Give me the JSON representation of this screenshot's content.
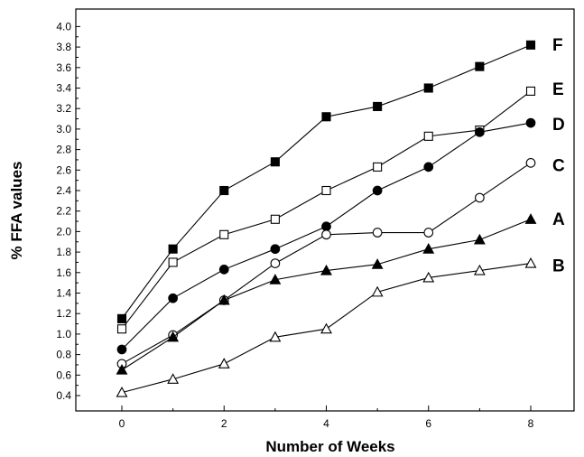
{
  "chart_data": {
    "type": "line",
    "title": "",
    "xlabel": "Number of Weeks",
    "ylabel": "% FFA values",
    "xlim": [
      -1,
      9
    ],
    "ylim": [
      0.3,
      4.1
    ],
    "xticks": [
      "0",
      "2",
      "4",
      "6",
      "8"
    ],
    "yticks": [
      "0.4",
      "0.6",
      "0.8",
      "1.0",
      "1.2",
      "1.4",
      "1.6",
      "1.8",
      "2.0",
      "2.2",
      "2.4",
      "2.6",
      "2.8",
      "3.0",
      "3.2",
      "3.4",
      "3.6",
      "3.8",
      "4.0"
    ],
    "grid": false,
    "x": [
      0,
      1,
      2,
      3,
      4,
      5,
      6,
      7,
      8
    ],
    "series": [
      {
        "name": "F",
        "marker": "filled-square",
        "values": [
          1.15,
          1.83,
          2.4,
          2.68,
          3.12,
          3.22,
          3.4,
          3.61,
          3.82
        ]
      },
      {
        "name": "E",
        "marker": "open-square",
        "values": [
          1.05,
          1.7,
          1.97,
          2.12,
          2.4,
          2.63,
          2.93,
          2.99,
          3.37
        ]
      },
      {
        "name": "D",
        "marker": "filled-circle",
        "values": [
          0.85,
          1.35,
          1.63,
          1.83,
          2.05,
          2.4,
          2.63,
          2.97,
          3.06
        ]
      },
      {
        "name": "C",
        "marker": "open-circle",
        "values": [
          0.71,
          0.99,
          1.33,
          1.69,
          1.97,
          1.99,
          1.99,
          2.33,
          2.67
        ]
      },
      {
        "name": "A",
        "marker": "filled-triangle",
        "values": [
          0.65,
          0.97,
          1.33,
          1.53,
          1.62,
          1.68,
          1.83,
          1.92,
          2.12
        ]
      },
      {
        "name": "B",
        "marker": "open-triangle",
        "values": [
          0.43,
          0.56,
          0.71,
          0.97,
          1.05,
          1.41,
          1.55,
          1.62,
          1.69
        ]
      }
    ]
  }
}
